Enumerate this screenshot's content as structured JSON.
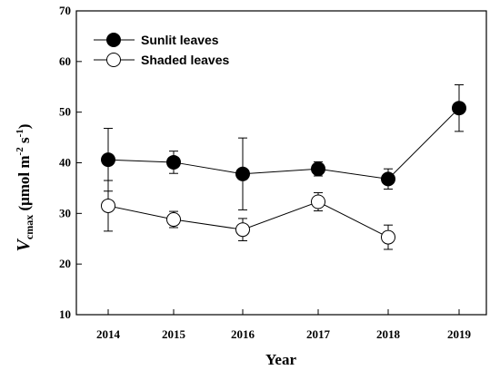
{
  "chart_data": {
    "type": "line",
    "xlabel": "Year",
    "ylabel": {
      "main": "V",
      "sub": "cmax",
      "unit_prefix": " (μmol m",
      "sup1": "-2",
      "unit_mid": " s",
      "sup2": "-1",
      "unit_suffix": ")"
    },
    "ylim": [
      10,
      70
    ],
    "yticks": [
      10,
      20,
      30,
      40,
      50,
      60,
      70
    ],
    "x": [
      "2014",
      "2015",
      "2016",
      "2017",
      "2018",
      "2019"
    ],
    "legend_position": "top-left",
    "series": [
      {
        "name": "Sunlit leaves",
        "marker": "filled",
        "values": [
          40.6,
          40.1,
          37.8,
          38.8,
          36.8,
          50.8
        ],
        "errors": [
          6.2,
          2.2,
          7.1,
          1.4,
          2.0,
          4.6
        ]
      },
      {
        "name": "Shaded leaves",
        "marker": "open",
        "values": [
          31.5,
          28.8,
          26.8,
          32.3,
          25.3,
          null
        ],
        "errors": [
          5.0,
          1.6,
          2.2,
          1.8,
          2.4,
          null
        ]
      }
    ]
  }
}
